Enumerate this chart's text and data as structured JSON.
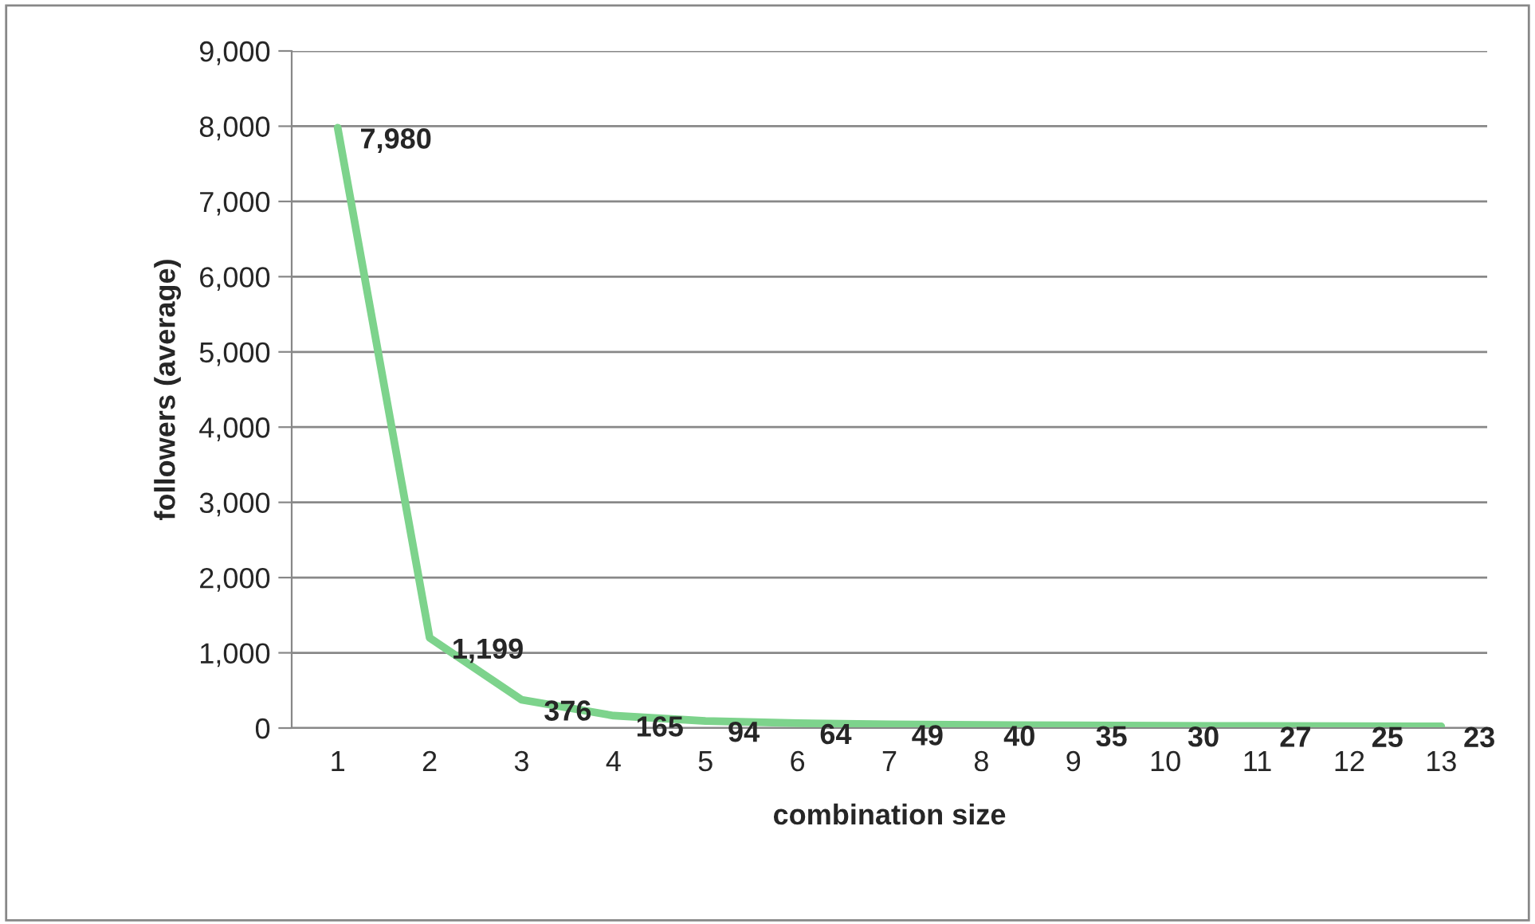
{
  "chart_data": {
    "type": "line",
    "xlabel": "combination size",
    "ylabel": "followers (average)",
    "categories": [
      "1",
      "2",
      "3",
      "4",
      "5",
      "6",
      "7",
      "8",
      "9",
      "10",
      "11",
      "12",
      "13"
    ],
    "series": [
      {
        "color": "#7dd38c",
        "values": [
          7980,
          1199,
          376,
          165,
          94,
          64,
          49,
          40,
          35,
          30,
          27,
          25,
          23
        ],
        "value_labels": [
          "7,980",
          "1,199",
          "376",
          "165",
          "94",
          "64",
          "49",
          "40",
          "35",
          "30",
          "27",
          "25",
          "23"
        ]
      }
    ],
    "ylim": [
      0,
      9000
    ],
    "yticks": [
      {
        "value": 0,
        "label": "0"
      },
      {
        "value": 1000,
        "label": "1,000"
      },
      {
        "value": 2000,
        "label": "2,000"
      },
      {
        "value": 3000,
        "label": "3,000"
      },
      {
        "value": 4000,
        "label": "4,000"
      },
      {
        "value": 5000,
        "label": "5,000"
      },
      {
        "value": 6000,
        "label": "6,000"
      },
      {
        "value": 7000,
        "label": "7,000"
      },
      {
        "value": 8000,
        "label": "8,000"
      },
      {
        "value": 9000,
        "label": "9,000"
      }
    ],
    "grid": "y",
    "legend": false,
    "marker": "none",
    "line_style": "solid"
  }
}
